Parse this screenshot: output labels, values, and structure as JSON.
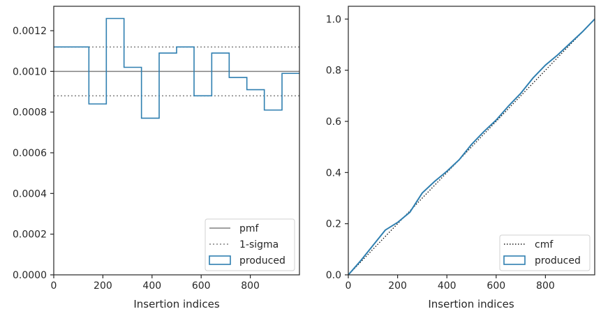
{
  "chart_data": [
    {
      "type": "line",
      "xlabel": "Insertion indices",
      "ylabel": "",
      "xlim": [
        0,
        1000
      ],
      "ylim": [
        0,
        0.00132
      ],
      "xticks": [
        "0",
        "200",
        "400",
        "600",
        "800"
      ],
      "yticks": [
        "0.0000",
        "0.0002",
        "0.0004",
        "0.0006",
        "0.0008",
        "0.0010",
        "0.0012"
      ],
      "grid": false,
      "legend_position": "lower-right",
      "legend": [
        "pmf",
        "1-sigma",
        "produced"
      ],
      "pmf": 0.001,
      "sigma_band": [
        0.00088,
        0.00112
      ],
      "produced": {
        "type": "step-histogram",
        "bin_edges": [
          0,
          143,
          214,
          286,
          357,
          429,
          500,
          571,
          643,
          714,
          786,
          857,
          929,
          1000
        ],
        "values": [
          0.00112,
          0.00084,
          0.00126,
          0.00102,
          0.00077,
          0.00109,
          0.00112,
          0.00088,
          0.00109,
          0.00097,
          0.00091,
          0.00081,
          0.00099
        ]
      },
      "colors": {
        "pmf": "#808080",
        "sigma": "#808080",
        "produced": "#2f7fb0"
      }
    },
    {
      "type": "line",
      "xlabel": "Insertion indices",
      "ylabel": "",
      "xlim": [
        0,
        1000
      ],
      "ylim": [
        0,
        1.05
      ],
      "xticks": [
        "0",
        "200",
        "400",
        "600",
        "800"
      ],
      "yticks": [
        "0.0",
        "0.2",
        "0.4",
        "0.6",
        "0.8",
        "1.0"
      ],
      "grid": false,
      "legend_position": "lower-right",
      "legend": [
        "cmf",
        "produced"
      ],
      "cmf": {
        "x": [
          0,
          1000
        ],
        "y": [
          0,
          1
        ]
      },
      "produced": {
        "x": [
          0,
          50,
          100,
          150,
          200,
          250,
          300,
          350,
          400,
          450,
          500,
          550,
          600,
          650,
          700,
          750,
          800,
          850,
          900,
          950,
          1000
        ],
        "y": [
          0,
          0.055,
          0.115,
          0.175,
          0.205,
          0.245,
          0.32,
          0.365,
          0.405,
          0.45,
          0.51,
          0.56,
          0.605,
          0.66,
          0.71,
          0.77,
          0.82,
          0.86,
          0.905,
          0.95,
          1.0
        ]
      },
      "colors": {
        "cmf": "#1a1a1a",
        "produced": "#2f7fb0"
      }
    }
  ]
}
